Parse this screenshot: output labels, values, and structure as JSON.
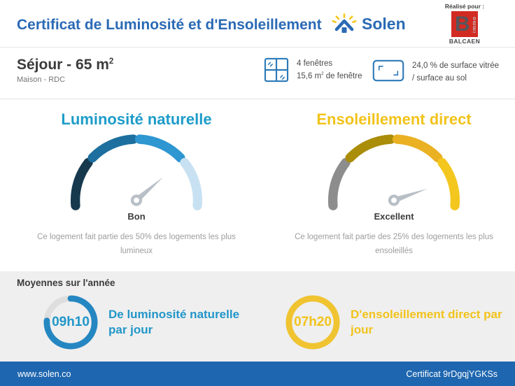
{
  "colors": {
    "brand_blue": "#2a6ab5",
    "teal_accent": "#1d9cc9",
    "yellow_accent": "#f2c31a",
    "footer_blue": "#1e66af",
    "panel_gray": "#efefef",
    "partner_red": "#d22b22"
  },
  "header": {
    "title": "Certificat de Luminosité et d'Ensoleillement",
    "brand": "Solen",
    "realise_pour": "Réalisé pour :",
    "partner": {
      "letter": "B",
      "immo": "immo",
      "name": "BALCAEN"
    }
  },
  "room": {
    "title": "Séjour - 65 m",
    "title_sup": "2",
    "subtitle": "Maison - RDC",
    "windows": {
      "count": "4 fenêtres",
      "size_pre": "15,6 m",
      "size_sup": "2",
      "size_post": "de fenêtre"
    },
    "glazing": {
      "line1": "24,0 % de surface vitrée",
      "line2": "/ surface au sol"
    }
  },
  "gauges": {
    "left": {
      "title": "Luminosité naturelle",
      "rating": "Bon",
      "description": "Ce logement fait partie des 50% des logements les plus lumineux",
      "segment_colors": [
        "#16394e",
        "#1c6f9e",
        "#2e96d1",
        "#c8e1f2"
      ],
      "needle_angle_deg": 41,
      "needle_color": "#b9bfc6"
    },
    "right": {
      "title": "Ensoleillement direct",
      "rating": "Excellent",
      "description": "Ce logement fait partie des 25% des logements les plus ensoleillés",
      "segment_colors": [
        "#8d8d8d",
        "#aa8d08",
        "#eab122",
        "#f4c71f"
      ],
      "needle_angle_deg": 19,
      "needle_color": "#b9bfc6"
    }
  },
  "averages": {
    "section_title": "Moyennes sur l'année",
    "left": {
      "value": "09h10",
      "label": "De luminosité naturelle par jour",
      "ring_color": "#2587c1",
      "track_color": "#dedede",
      "progress": 0.76
    },
    "right": {
      "value": "07h20",
      "label": "D'ensoleillement direct par jour",
      "ring_color": "#f0c330",
      "track_color": "#dedede",
      "progress": 1
    }
  },
  "footer": {
    "website": "www.solen.co",
    "certificate": "Certificat 9rDgqjYGKSs"
  }
}
